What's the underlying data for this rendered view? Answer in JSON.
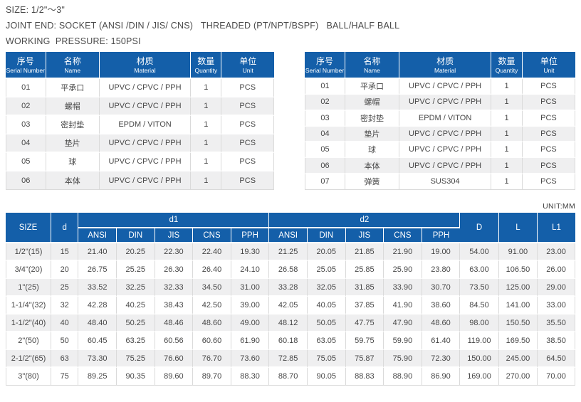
{
  "page": {
    "size_line": "SIZE: 1/2\"～3\"",
    "joint_line": "JOINT END: SOCKET (ANSI /DIN / JIS/ CNS)   THREADED (PT/NPT/BSPF)   BALL/HALF BALL",
    "pressure_line": "WORKING  PRESSURE: 150PSI",
    "unit_note": "UNIT:MM"
  },
  "colors": {
    "header_blue": "#145fa9",
    "row_stripe": "#efeff0",
    "border_gray": "#dadada",
    "body_text": "#474747"
  },
  "parts_header": {
    "cols": [
      {
        "zh": "序号",
        "en": "Serial Number"
      },
      {
        "zh": "名称",
        "en": "Name"
      },
      {
        "zh": "材质",
        "en": "Material"
      },
      {
        "zh": "数量",
        "en": "Quantity"
      },
      {
        "zh": "单位",
        "en": "Unit"
      }
    ]
  },
  "parts_left": {
    "rows": [
      [
        "01",
        "平承口",
        "UPVC / CPVC / PPH",
        "1",
        "PCS"
      ],
      [
        "02",
        "螺帽",
        "UPVC / CPVC / PPH",
        "1",
        "PCS"
      ],
      [
        "03",
        "密封垫",
        "EPDM / VITON",
        "1",
        "PCS"
      ],
      [
        "04",
        "垫片",
        "UPVC / CPVC / PPH",
        "1",
        "PCS"
      ],
      [
        "05",
        "球",
        "UPVC / CPVC / PPH",
        "1",
        "PCS"
      ],
      [
        "06",
        "本体",
        "UPVC / CPVC / PPH",
        "1",
        "PCS"
      ]
    ]
  },
  "parts_right": {
    "rows": [
      [
        "01",
        "平承口",
        "UPVC / CPVC / PPH",
        "1",
        "PCS"
      ],
      [
        "02",
        "螺帽",
        "UPVC / CPVC / PPH",
        "1",
        "PCS"
      ],
      [
        "03",
        "密封垫",
        "EPDM / VITON",
        "1",
        "PCS"
      ],
      [
        "04",
        "垫片",
        "UPVC / CPVC / PPH",
        "1",
        "PCS"
      ],
      [
        "05",
        "球",
        "UPVC / CPVC / PPH",
        "1",
        "PCS"
      ],
      [
        "06",
        "本体",
        "UPVC / CPVC / PPH",
        "1",
        "PCS"
      ],
      [
        "07",
        "弹簧",
        "SUS304",
        "1",
        "PCS"
      ]
    ]
  },
  "dimension_table": {
    "col_size": "SIZE",
    "col_d": "d",
    "col_d1": "d1",
    "col_d2": "d2",
    "col_D": "D",
    "col_L": "L",
    "col_L1": "L1",
    "standards": [
      "ANSI",
      "DIN",
      "JIS",
      "CNS",
      "PPH"
    ],
    "rows": [
      [
        "1/2\"(15)",
        "15",
        "21.40",
        "20.25",
        "22.30",
        "22.40",
        "19.30",
        "21.25",
        "20.05",
        "21.85",
        "21.90",
        "19.00",
        "54.00",
        "91.00",
        "23.00"
      ],
      [
        "3/4\"(20)",
        "20",
        "26.75",
        "25.25",
        "26.30",
        "26.40",
        "24.10",
        "26.58",
        "25.05",
        "25.85",
        "25.90",
        "23.80",
        "63.00",
        "106.50",
        "26.00"
      ],
      [
        "1\"(25)",
        "25",
        "33.52",
        "32.25",
        "32.33",
        "34.50",
        "31.00",
        "33.28",
        "32.05",
        "31.85",
        "33.90",
        "30.70",
        "73.50",
        "125.00",
        "29.00"
      ],
      [
        "1-1/4\"(32)",
        "32",
        "42.28",
        "40.25",
        "38.43",
        "42.50",
        "39.00",
        "42.05",
        "40.05",
        "37.85",
        "41.90",
        "38.60",
        "84.50",
        "141.00",
        "33.00"
      ],
      [
        "1-1/2\"(40)",
        "40",
        "48.40",
        "50.25",
        "48.46",
        "48.60",
        "49.00",
        "48.12",
        "50.05",
        "47.75",
        "47.90",
        "48.60",
        "98.00",
        "150.50",
        "35.50"
      ],
      [
        "2\"(50)",
        "50",
        "60.45",
        "63.25",
        "60.56",
        "60.60",
        "61.90",
        "60.18",
        "63.05",
        "59.75",
        "59.90",
        "61.40",
        "119.00",
        "169.50",
        "38.50"
      ],
      [
        "2-1/2\"(65)",
        "63",
        "73.30",
        "75.25",
        "76.60",
        "76.70",
        "73.60",
        "72.85",
        "75.05",
        "75.87",
        "75.90",
        "72.30",
        "150.00",
        "245.00",
        "64.50"
      ],
      [
        "3\"(80)",
        "75",
        "89.25",
        "90.35",
        "89.60",
        "89.70",
        "88.30",
        "88.70",
        "90.05",
        "88.83",
        "88.90",
        "86.90",
        "169.00",
        "270.00",
        "70.00"
      ]
    ]
  }
}
